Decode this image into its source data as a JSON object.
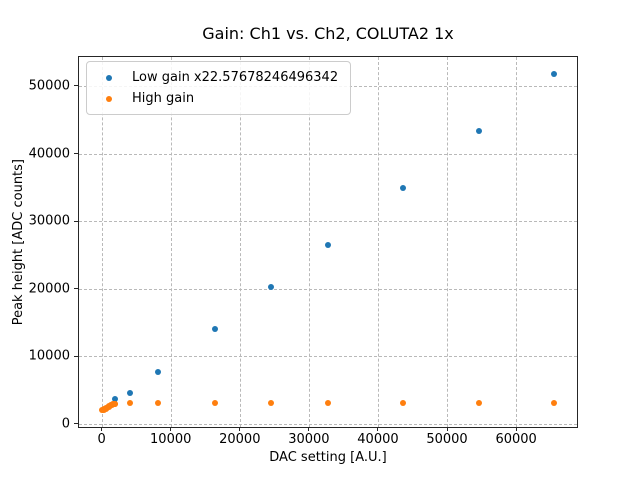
{
  "chart_data": {
    "type": "scatter",
    "title": "Gain: Ch1 vs. Ch2, COLUTA2 1x",
    "xlabel": "DAC setting [A.U.]",
    "ylabel": "Peak height [ADC counts]",
    "xlim": [
      -3277,
      68812
    ],
    "ylim": [
      -490,
      54290
    ],
    "x_ticks": [
      0,
      10000,
      20000,
      30000,
      40000,
      50000,
      60000
    ],
    "x_tick_labels": [
      "0",
      "10000",
      "20000",
      "30000",
      "40000",
      "50000",
      "60000"
    ],
    "y_ticks": [
      0,
      10000,
      20000,
      30000,
      40000,
      50000
    ],
    "y_tick_labels": [
      "0",
      "10000",
      "20000",
      "30000",
      "40000",
      "50000"
    ],
    "grid": true,
    "grid_style": "dashed",
    "grid_color": "#b9b9b9",
    "legend_position": "upper-left",
    "series": [
      {
        "name": "Low gain x22.57678246496342",
        "color": "#1f77b4",
        "marker": "circle",
        "points": [
          [
            2000,
            3640
          ],
          [
            4096,
            4480
          ],
          [
            8192,
            7590
          ],
          [
            16384,
            13960
          ],
          [
            24576,
            20180
          ],
          [
            32768,
            26440
          ],
          [
            43690,
            34870
          ],
          [
            54613,
            43330
          ],
          [
            65535,
            51820
          ]
        ]
      },
      {
        "name": "High gain",
        "color": "#ff7f0e",
        "marker": "circle",
        "points": [
          [
            100,
            2030
          ],
          [
            200,
            2050
          ],
          [
            300,
            2075
          ],
          [
            400,
            2110
          ],
          [
            500,
            2150
          ],
          [
            600,
            2200
          ],
          [
            700,
            2260
          ],
          [
            800,
            2330
          ],
          [
            900,
            2410
          ],
          [
            1000,
            2490
          ],
          [
            1100,
            2570
          ],
          [
            1200,
            2650
          ],
          [
            1300,
            2720
          ],
          [
            1400,
            2780
          ],
          [
            1500,
            2830
          ],
          [
            1600,
            2870
          ],
          [
            1700,
            2900
          ],
          [
            1800,
            2925
          ],
          [
            1900,
            2945
          ],
          [
            2000,
            2960
          ],
          [
            4096,
            2990
          ],
          [
            8192,
            3000
          ],
          [
            16384,
            3000
          ],
          [
            24576,
            3000
          ],
          [
            32768,
            3030
          ],
          [
            43690,
            3030
          ],
          [
            54613,
            3030
          ],
          [
            65535,
            3030
          ]
        ]
      }
    ]
  }
}
